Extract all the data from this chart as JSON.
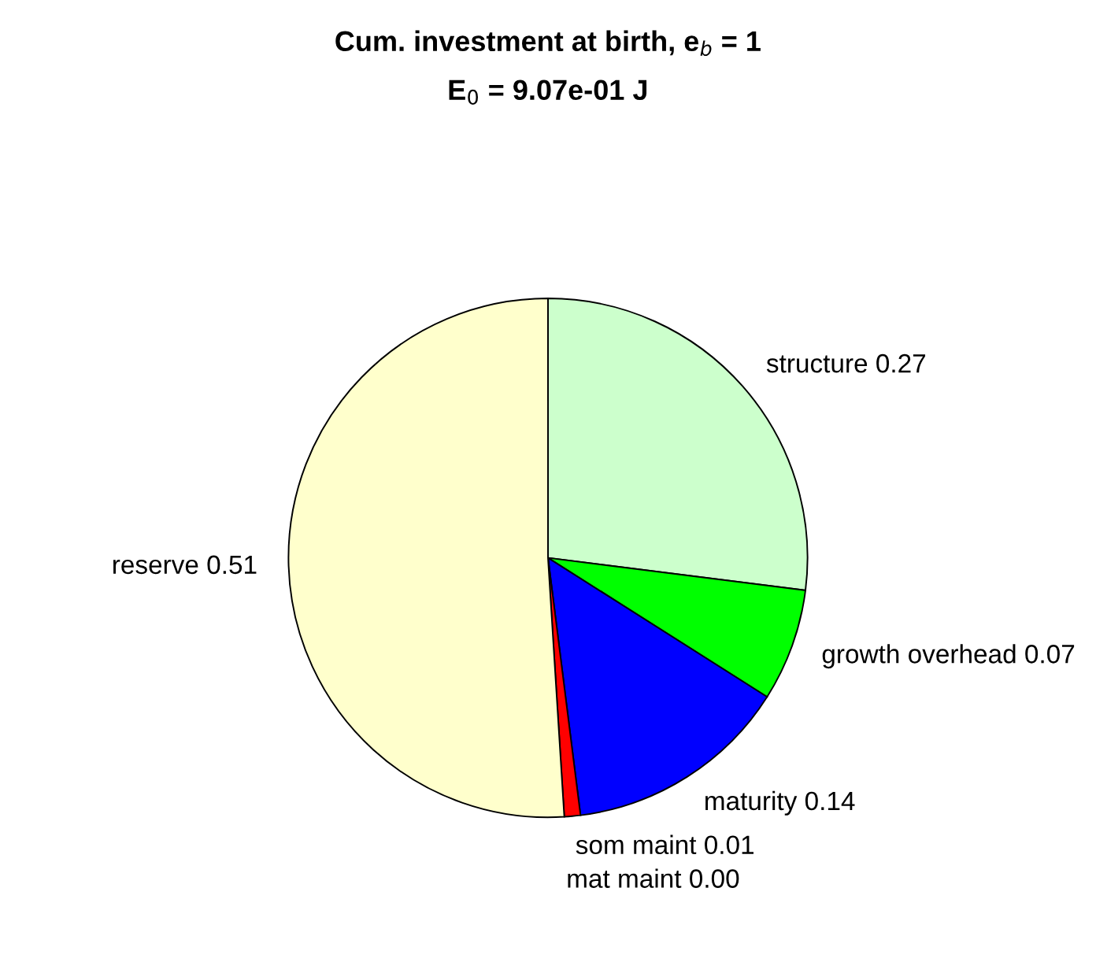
{
  "chart_data": {
    "type": "pie",
    "title": "Cum. investment at birth, e$_{b}$ = 1",
    "subtitle": "E$_{0}$ = 9.07e-01 J",
    "categories": [
      "structure",
      "growth overhead",
      "maturity",
      "som maint",
      "mat maint",
      "reserve"
    ],
    "values": [
      0.27,
      0.07,
      0.14,
      0.01,
      0.0,
      0.51
    ],
    "value_labels": [
      "0.27",
      "0.07",
      "0.14",
      "0.01",
      "0.00",
      "0.51"
    ],
    "colors": [
      "#ccffcc",
      "#00ff00",
      "#0000ff",
      "#ff0000",
      "#ff00ff",
      "#ffffcc"
    ]
  }
}
